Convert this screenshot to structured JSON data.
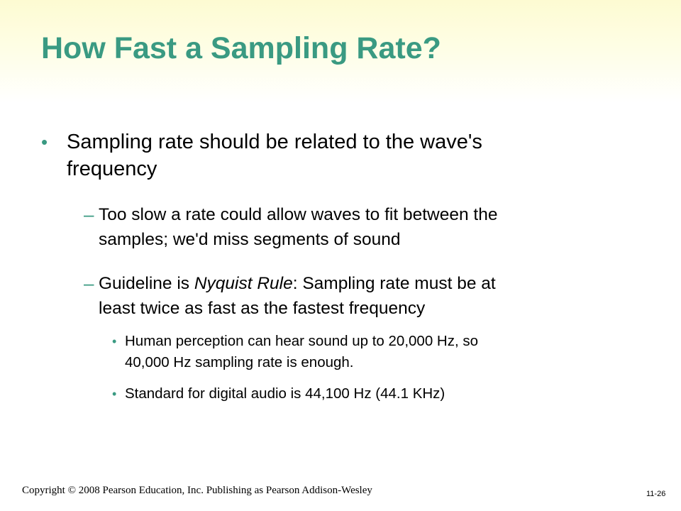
{
  "slide": {
    "title": "How Fast a Sampling Rate?",
    "title_color": "#3a9a82",
    "bullet_color": "#3a9a82",
    "bullets": {
      "b1": {
        "marker": "•",
        "line1": "Sampling rate should be related to the wave's",
        "line2": "frequency"
      },
      "b2": {
        "marker": "–",
        "line1": "Too slow a rate could allow waves to fit between the",
        "line2": "samples; we'd miss segments of sound"
      },
      "b3": {
        "marker": "–",
        "line1_pre": "Guideline is ",
        "line1_em": "Nyquist Rule",
        "line1_post": ":  Sampling rate must be at",
        "line2": "least twice as fast as the fastest frequency"
      },
      "b4": {
        "marker": "•",
        "line1": "Human perception can hear sound up to 20,000 Hz, so",
        "line2": "40,000 Hz sampling rate is enough."
      },
      "b5": {
        "marker": "•",
        "line1": "Standard for digital audio is 44,100 Hz (44.1 KHz)"
      }
    }
  },
  "footer": {
    "copyright": "Copyright © 2008 Pearson Education, Inc. Publishing as Pearson Addison-Wesley",
    "page_number": "11-26"
  }
}
